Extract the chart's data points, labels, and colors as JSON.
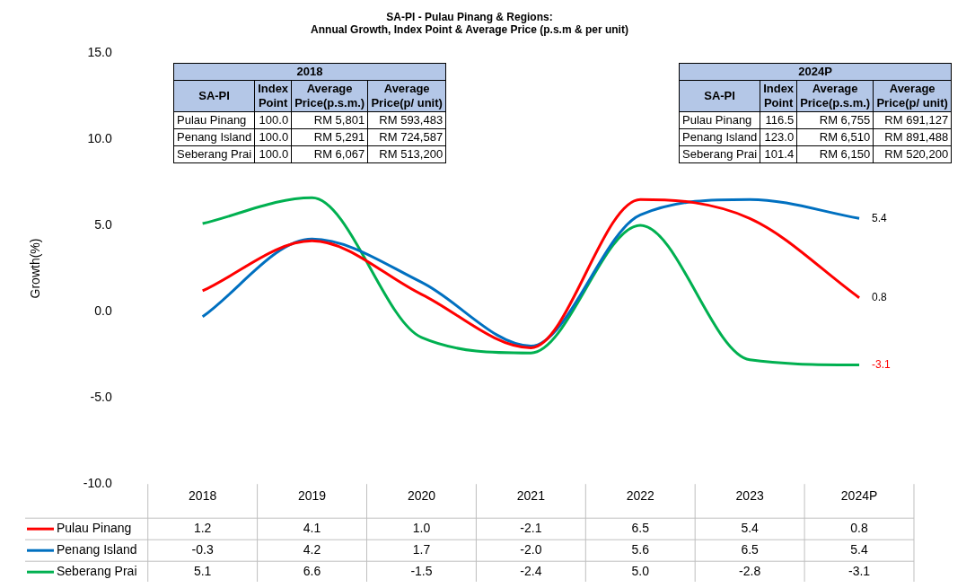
{
  "chart_data": [
    {
      "type": "line",
      "title": "SA-PI - Pulau Pinang & Regions:",
      "subtitle": "Annual Growth, Index Point & Average Price (p.s.m & per unit)",
      "ylabel": "Growth(%)",
      "categories": [
        "2018",
        "2019",
        "2020",
        "2021",
        "2022",
        "2023",
        "2024P"
      ],
      "series": [
        {
          "name": "Pulau Pinang",
          "color": "#ff0000",
          "values": [
            1.2,
            4.1,
            1.0,
            -2.1,
            6.5,
            5.4,
            0.8
          ],
          "value_labels": [
            "1.2",
            "4.1",
            "1.0",
            "-2.1",
            "6.5",
            "5.4",
            "0.8"
          ]
        },
        {
          "name": "Penang Island",
          "color": "#0070c0",
          "values": [
            -0.3,
            4.2,
            1.7,
            -2.0,
            5.6,
            6.5,
            5.4
          ],
          "value_labels": [
            "-0.3",
            "4.2",
            "1.7",
            "-2.0",
            "5.6",
            "6.5",
            "5.4"
          ]
        },
        {
          "name": "Seberang Prai",
          "color": "#00b050",
          "values": [
            5.1,
            6.6,
            -1.5,
            -2.4,
            5.0,
            -2.8,
            -3.1
          ],
          "value_labels": [
            "5.1",
            "6.6",
            "-1.5",
            "-2.4",
            "5.0",
            "-2.8",
            "-3.1"
          ]
        }
      ],
      "annotations": [
        {
          "text": "5.4",
          "x": "2024P",
          "y": 5.4
        },
        {
          "text": "0.8",
          "x": "2024P",
          "y": 0.8
        },
        {
          "text": "-3.1",
          "x": "2024P",
          "y": -3.1
        }
      ],
      "ylim": [
        -10,
        15
      ],
      "yticks": [
        {
          "value": -10,
          "label": "-10.0"
        },
        {
          "value": -5,
          "label": "-5.0"
        },
        {
          "value": 0,
          "label": "0.0"
        },
        {
          "value": 5,
          "label": "5.0"
        },
        {
          "value": 10,
          "label": "10.0"
        },
        {
          "value": 15,
          "label": "15.0"
        }
      ],
      "grid": false,
      "legend": "bottom",
      "line_style": "solid",
      "marker": "none"
    },
    {
      "type": "other",
      "title": "2018",
      "annotations": [
        "SA-PI",
        "Index Point",
        "Average Price(p.s.m.)",
        "Average Price(p/ unit)",
        "Pulau Pinang",
        "100.0",
        "RM 5,801",
        "RM 593,483",
        "Penang Island",
        "100.0",
        "RM 5,291",
        "RM 724,587",
        "Seberang Prai",
        "100.0",
        "RM 6,067",
        "RM 513,200"
      ]
    },
    {
      "type": "other",
      "title": "2024P",
      "annotations": [
        "SA-PI",
        "Index Point",
        "Average Price(p.s.m.)",
        "Average Price(p/ unit)",
        "Pulau Pinang",
        "116.5",
        "RM 6,755",
        "RM 691,127",
        "Penang Island",
        "123.0",
        "RM 6,510",
        "RM 891,488",
        "Seberang Prai",
        "101.4",
        "RM 6,150",
        "RM 520,200"
      ]
    }
  ]
}
